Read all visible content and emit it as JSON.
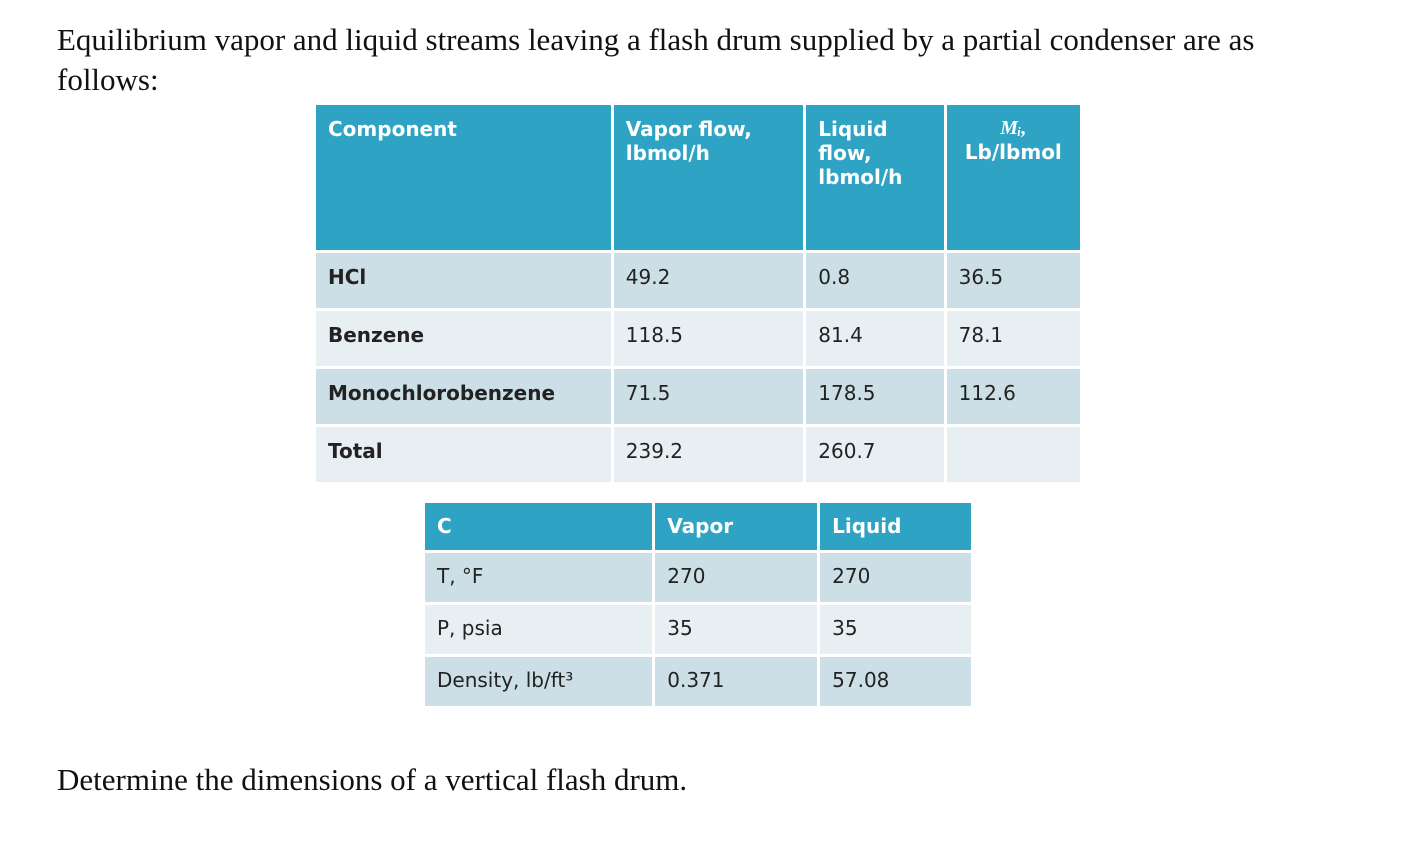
{
  "intro": "Equilibrium vapor and liquid streams leaving a flash drum supplied by a partial condenser are as follows:",
  "table1": {
    "header": [
      "Component",
      "Vapor flow, lbmol/h",
      "Liquid flow, lbmol/h",
      "Mᵢ,",
      "Lb/lbmol"
    ],
    "rows": [
      [
        "HCl",
        "49.2",
        "0.8",
        "36.5"
      ],
      [
        "Benzene",
        "118.5",
        "81.4",
        "78.1"
      ],
      [
        "Monochlorobenzene",
        "71.5",
        "178.5",
        "112.6"
      ],
      [
        "Total",
        "239.2",
        "260.7"
      ]
    ]
  },
  "table2": {
    "header": [
      "C",
      "Vapor",
      "Liquid"
    ],
    "rows": [
      [
        "T, °F",
        "270",
        "270"
      ],
      [
        "P, psia",
        "35",
        "35"
      ],
      [
        "Density, lb/ft³",
        "0.371",
        "57.08"
      ]
    ]
  },
  "question": "Determine the dimensions of a vertical flash drum."
}
